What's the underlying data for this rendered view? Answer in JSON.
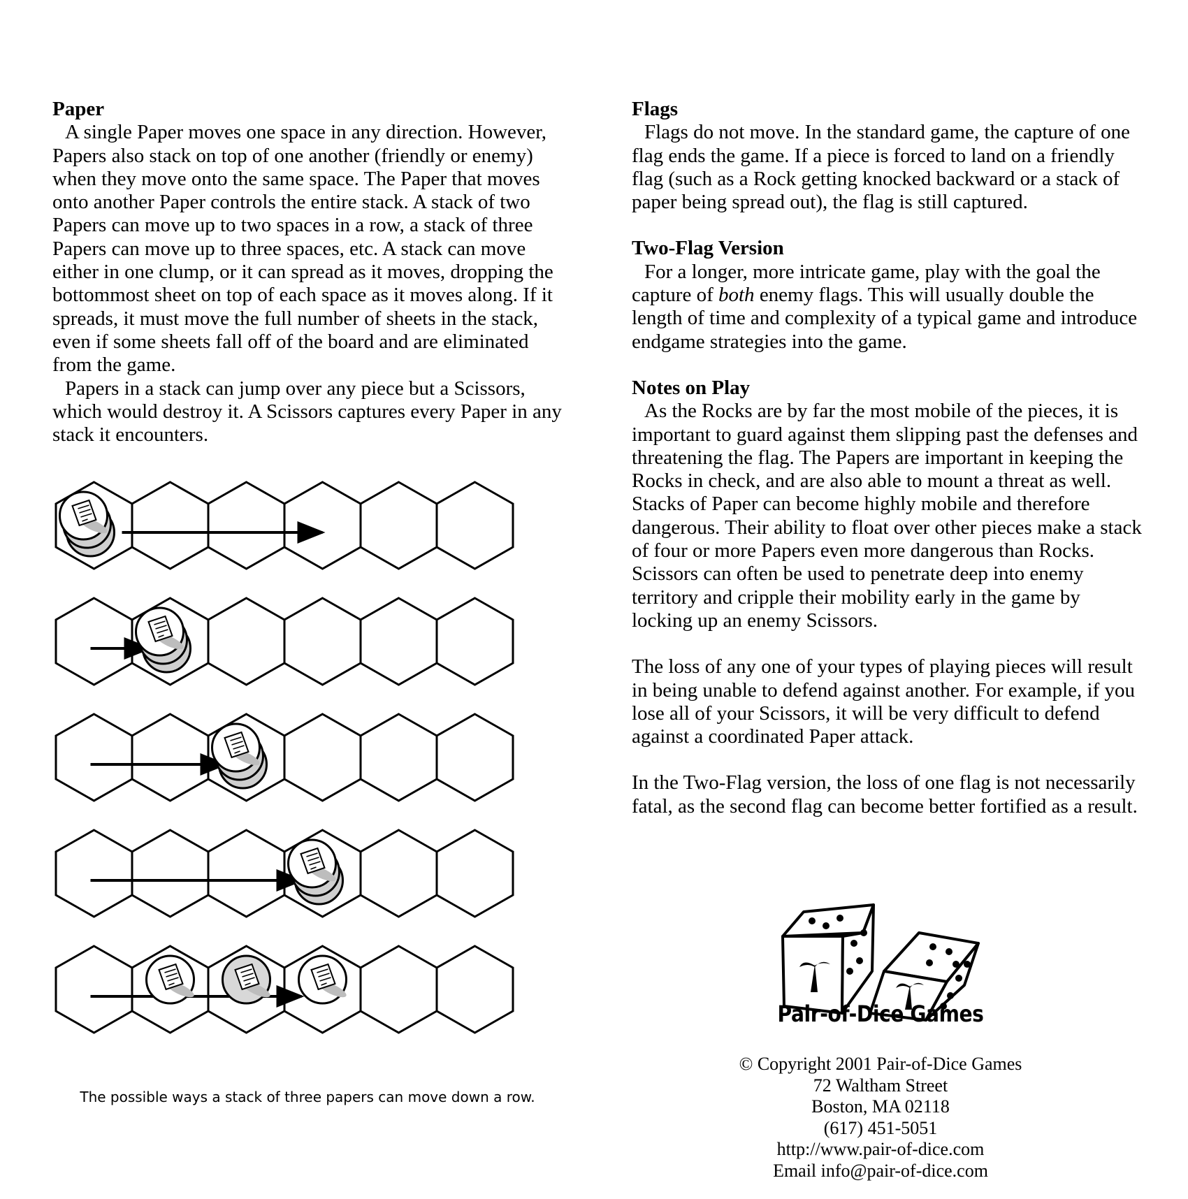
{
  "left": {
    "heading": "Paper",
    "para1": "A single Paper moves one space in any direction. However, Papers also stack on top of one another (friendly or enemy) when they move onto the same space. The Paper that moves onto another Paper controls the entire stack. A stack of two Papers can move up to two spaces in a row, a stack of three Papers can move up to three spaces, etc. A stack can move either in one clump, or it can spread as it moves, dropping the bottommost sheet on top of each space as it moves along. If it spreads, it must move the full number of sheets in the stack, even if some sheets fall off of the board and are eliminated from the game.",
    "para2": "Papers in a stack can jump over any piece but a Scissors, which would destroy it. A Scissors captures every Paper in any stack it encounters.",
    "caption": "The possible ways a stack of three papers can move down a row."
  },
  "right": {
    "flags_heading": "Flags",
    "flags_text": "Flags do not move. In the standard game, the capture of one flag ends the game. If a piece is forced to land on a friendly flag (such as a Rock getting knocked backward or a stack of paper being spread out), the flag is still captured.",
    "twoflag_heading": "Two-Flag Version",
    "twoflag_text_a": "For a longer, more intricate game, play with the goal the capture of ",
    "twoflag_text_em": "both",
    "twoflag_text_b": " enemy flags. This will usually double the length of time and complexity of a typical game and introduce endgame strategies into the game.",
    "notes_heading": "Notes on Play",
    "notes_text": "As the Rocks are by far the most mobile of the pieces, it is important to guard against them slipping past the defenses and threatening the flag. The Papers are important in keeping the Rocks in check, and are also able to mount a threat as well. Stacks of Paper can become highly mobile and therefore dangerous. Their ability to float over other pieces make a stack of four or more Papers even more dangerous than Rocks. Scissors can often be used to penetrate deep into enemy territory and cripple their mobility early in the game by locking up an enemy Scissors.",
    "loss_text": "The loss of any one of your types of playing pieces will result in being unable to defend against another. For example, if you lose all of your Scissors, it will be very difficult to defend against a coordinated Paper attack.",
    "twoflag_loss_text": "In the Two-Flag version, the loss of one flag is not necessarily fatal, as the second flag can become better fortified as a result."
  },
  "brand": {
    "name": "Pair-of-Dice Games",
    "copyright": "© Copyright 2001 Pair-of-Dice Games",
    "street": "72 Waltham Street",
    "city": "Boston, MA 02118",
    "phone": "(617) 451-5051",
    "url": "http://www.pair-of-dice.com",
    "email": "Email info@pair-of-dice.com"
  },
  "diagram": {
    "hexes_per_row": 6,
    "rows": [
      {
        "stacks": [
          {
            "hex": 0,
            "count": 3
          }
        ],
        "arrow_from_hex": 0,
        "arrow_to_hex": 3
      },
      {
        "stacks": [
          {
            "hex": 1,
            "count": 3
          }
        ],
        "arrow_from_hex": 0,
        "arrow_to_hex": 1
      },
      {
        "stacks": [
          {
            "hex": 2,
            "count": 3
          }
        ],
        "arrow_from_hex": 0,
        "arrow_to_hex": 2
      },
      {
        "stacks": [
          {
            "hex": 3,
            "count": 3
          }
        ],
        "arrow_from_hex": 0,
        "arrow_to_hex": 3
      },
      {
        "stacks": [
          {
            "hex": 1,
            "count": 1
          },
          {
            "hex": 2,
            "count": 1
          },
          {
            "hex": 3,
            "count": 1
          }
        ],
        "arrow_from_hex": 0,
        "arrow_to_hex": 3
      }
    ]
  }
}
